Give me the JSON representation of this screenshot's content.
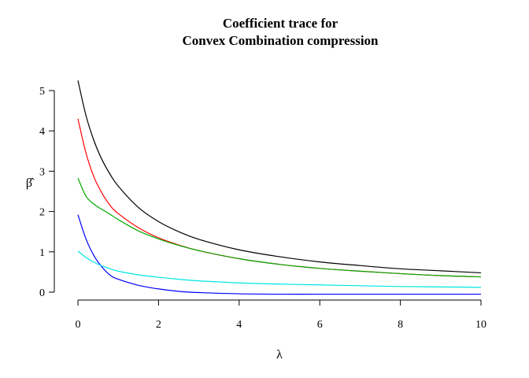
{
  "chart_data": {
    "type": "line",
    "title_line1": "Coefficient trace for",
    "title_line2": "Convex Combination compression",
    "xlabel": "λ",
    "ylabel": "β̂",
    "xlim": [
      0,
      10
    ],
    "ylim": [
      0,
      5
    ],
    "x_ticks": [
      0,
      2,
      4,
      6,
      8,
      10
    ],
    "y_ticks": [
      0,
      1,
      2,
      3,
      4,
      5
    ],
    "grid": false,
    "x": [
      0,
      0.2,
      0.4,
      0.6,
      0.8,
      1,
      1.5,
      2,
      2.5,
      3,
      4,
      5,
      6,
      7,
      8,
      9,
      10
    ],
    "series": [
      {
        "color": "#000000",
        "values": [
          5.25,
          4.38,
          3.75,
          3.28,
          2.92,
          2.63,
          2.1,
          1.75,
          1.5,
          1.31,
          1.05,
          0.88,
          0.75,
          0.66,
          0.58,
          0.53,
          0.48
        ]
      },
      {
        "color": "#ff0000",
        "values": [
          4.3,
          3.45,
          2.85,
          2.45,
          2.15,
          1.95,
          1.6,
          1.35,
          1.17,
          1.03,
          0.83,
          0.69,
          0.59,
          0.52,
          0.46,
          0.41,
          0.38
        ]
      },
      {
        "color": "#00aa00",
        "values": [
          2.83,
          2.38,
          2.18,
          2.05,
          1.93,
          1.8,
          1.52,
          1.32,
          1.16,
          1.03,
          0.83,
          0.69,
          0.59,
          0.52,
          0.46,
          0.41,
          0.38
        ]
      },
      {
        "color": "#0000ff",
        "values": [
          1.92,
          1.32,
          0.9,
          0.62,
          0.42,
          0.32,
          0.17,
          0.08,
          0.02,
          -0.01,
          -0.04,
          -0.05,
          -0.05,
          -0.05,
          -0.05,
          -0.05,
          -0.05
        ]
      },
      {
        "color": "#00e5e5",
        "values": [
          1.02,
          0.86,
          0.74,
          0.65,
          0.58,
          0.52,
          0.43,
          0.37,
          0.32,
          0.28,
          0.23,
          0.2,
          0.18,
          0.16,
          0.14,
          0.13,
          0.12
        ]
      }
    ]
  }
}
